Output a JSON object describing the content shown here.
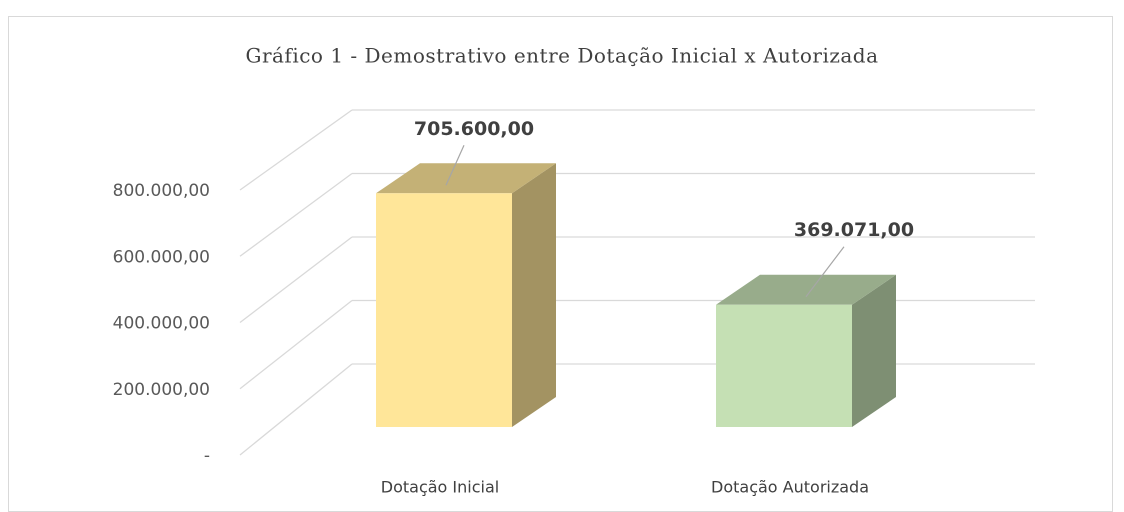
{
  "chart_data": {
    "type": "bar3d",
    "title": "Gráfico 1 - Demostrativo entre Dotação Inicial x Autorizada",
    "categories": [
      "Dotação Inicial",
      "Dotação  Autorizada"
    ],
    "values": [
      705600,
      369071
    ],
    "value_labels": [
      "705.600,00",
      "369.071,00"
    ],
    "colors": [
      "#FFE699",
      "#C5E0B4"
    ],
    "ylim": [
      0,
      800000
    ],
    "yticks": [
      {
        "value": 0,
        "label": "-"
      },
      {
        "value": 200000,
        "label": "200.000,00"
      },
      {
        "value": 400000,
        "label": "400.000,00"
      },
      {
        "value": 600000,
        "label": "600.000,00"
      },
      {
        "value": 800000,
        "label": "800.000,00"
      }
    ],
    "grid": true
  }
}
